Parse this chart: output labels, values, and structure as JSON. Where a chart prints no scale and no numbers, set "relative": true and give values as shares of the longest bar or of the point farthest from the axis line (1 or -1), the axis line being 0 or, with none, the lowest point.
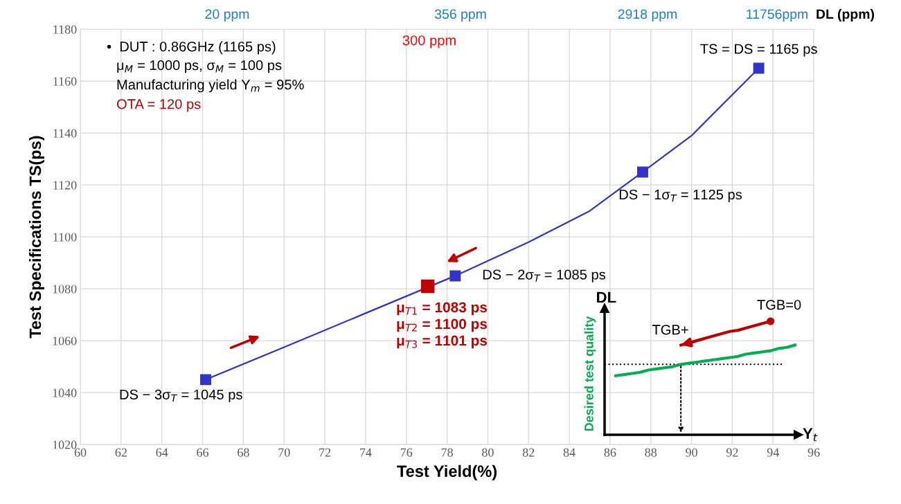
{
  "chart_data": [
    {
      "type": "line",
      "xlabel": "Test Yield(%)",
      "ylabel": "Test Specifications TS(ps)",
      "xlim": [
        60,
        96
      ],
      "xticks": [
        60,
        62,
        64,
        66,
        68,
        70,
        72,
        74,
        76,
        78,
        80,
        82,
        84,
        86,
        88,
        90,
        92,
        94,
        96
      ],
      "ylim": [
        1020,
        1180
      ],
      "yticks": [
        1020,
        1040,
        1060,
        1080,
        1100,
        1120,
        1140,
        1160,
        1180
      ],
      "grid": true,
      "legend": false,
      "series": [
        {
          "type": "line",
          "color": "#3333cc",
          "marker": "none",
          "x": [
            66.15,
            70,
            74,
            78.4,
            82,
            85,
            87.6,
            90,
            93.3
          ],
          "values": [
            1045,
            1057.5,
            1070.6,
            1085,
            1098,
            1110,
            1125,
            1139,
            1165
          ]
        },
        {
          "type": "scatter",
          "color": "#3333cc",
          "marker": "square",
          "x": [
            66.15,
            78.4,
            87.6,
            93.3
          ],
          "values": [
            1045,
            1085,
            1125,
            1165
          ]
        },
        {
          "type": "scatter",
          "color": "#c00000",
          "marker": "square",
          "x": [
            77.05
          ],
          "values": [
            1081
          ]
        }
      ],
      "annotations": [
        "•  DUT : 0.86GHz (1165 ps)",
        "μ$_{M}$ = 1000 ps, σ$_{M}$ = 100 ps",
        "Manufacturing yield Y$_{m}$ = 95%",
        "OTA = 120 ps",
        "20 ppm",
        "356 ppm",
        "2918 ppm",
        "11756ppm",
        "DL (ppm)",
        "300 ppm",
        "μ$_{T1}$ = 1083 ps\nμ$_{T2}$ = 1100 ps\nμ$_{T3}$ = 1101 ps",
        {
          "text": "TS = DS = 1165 ps",
          "x": 93.3,
          "y": 1165
        },
        {
          "text": "DS − 1σ$_{T}$ = 1125 ps",
          "x": 87.6,
          "y": 1125
        },
        {
          "text": "DS − 2σ$_{T}$ = 1085 ps",
          "x": 78.4,
          "y": 1085
        },
        {
          "text": "DS − 3σ$_{T}$ = 1045 ps",
          "x": 66.15,
          "y": 1045
        }
      ]
    },
    {
      "type": "line",
      "relative": true,
      "xlabel": "Y$_{t}$",
      "ylabel": "DL",
      "categories": [
        null,
        null,
        null,
        null,
        null,
        null,
        null,
        null,
        null,
        null,
        null,
        null,
        null,
        null,
        null,
        null,
        null,
        null,
        null,
        null,
        null,
        null,
        null
      ],
      "series": [
        {
          "name": "Desired test quality",
          "color": "#00b050",
          "values": [
            0.52,
            0.53,
            0.54,
            0.55,
            0.57,
            0.58,
            0.59,
            0.6,
            0.62,
            0.63,
            0.64,
            0.65,
            0.66,
            0.67,
            0.68,
            0.69,
            0.71,
            0.72,
            0.73,
            0.74,
            0.76,
            0.77,
            0.79
          ]
        },
        {
          "color": "#c00000",
          "values": [
            null,
            null,
            null,
            null,
            null,
            null,
            null,
            null,
            0.79,
            0.81,
            0.83,
            0.85,
            0.87,
            0.89,
            0.91,
            0.92,
            0.94,
            0.96,
            0.98,
            1.0,
            null,
            null,
            null
          ]
        }
      ],
      "ref_lines": [
        {
          "axis": "y",
          "value": 0.62,
          "line_style": "dotted",
          "color": "#000000"
        }
      ],
      "annotations": [
        "TGB=0",
        "TGB+"
      ]
    }
  ]
}
